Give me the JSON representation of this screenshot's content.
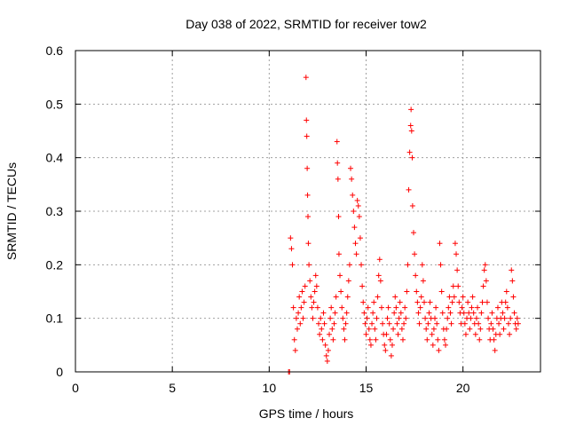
{
  "chart_data": {
    "type": "scatter",
    "title": "Day 038 of 2022, SRMTID for receiver tow2",
    "xlabel": "GPS time / hours",
    "ylabel": "SRMTID / TECUs",
    "xlim": [
      0,
      24
    ],
    "ylim": [
      0,
      0.6
    ],
    "xticks": [
      0,
      5,
      10,
      15,
      20
    ],
    "yticks": [
      0,
      0.1,
      0.2,
      0.3,
      0.4,
      0.5,
      0.6
    ],
    "xtick_labels": [
      "0",
      "5",
      "10",
      "15",
      "20"
    ],
    "ytick_labels": [
      "0",
      "0.1",
      "0.2",
      "0.3",
      "0.4",
      "0.5",
      "0.6"
    ],
    "grid": true,
    "marker": "+",
    "color": "#ff0000",
    "series": [
      {
        "name": "tow2",
        "points": [
          [
            11.0,
            0.0
          ],
          [
            11.05,
            0.0
          ],
          [
            11.1,
            0.25
          ],
          [
            11.15,
            0.23
          ],
          [
            11.2,
            0.2
          ],
          [
            11.25,
            0.12
          ],
          [
            11.3,
            0.06
          ],
          [
            11.35,
            0.04
          ],
          [
            11.4,
            0.1
          ],
          [
            11.45,
            0.08
          ],
          [
            11.5,
            0.11
          ],
          [
            11.55,
            0.14
          ],
          [
            11.6,
            0.09
          ],
          [
            11.65,
            0.12
          ],
          [
            11.7,
            0.15
          ],
          [
            11.75,
            0.1
          ],
          [
            11.8,
            0.13
          ],
          [
            11.85,
            0.16
          ],
          [
            11.9,
            0.55
          ],
          [
            11.92,
            0.47
          ],
          [
            11.94,
            0.44
          ],
          [
            11.96,
            0.38
          ],
          [
            11.98,
            0.33
          ],
          [
            12.0,
            0.29
          ],
          [
            12.02,
            0.24
          ],
          [
            12.05,
            0.2
          ],
          [
            12.1,
            0.17
          ],
          [
            12.15,
            0.14
          ],
          [
            12.2,
            0.12
          ],
          [
            12.25,
            0.1
          ],
          [
            12.3,
            0.13
          ],
          [
            12.35,
            0.15
          ],
          [
            12.4,
            0.18
          ],
          [
            12.45,
            0.16
          ],
          [
            12.5,
            0.12
          ],
          [
            12.55,
            0.09
          ],
          [
            12.6,
            0.07
          ],
          [
            12.65,
            0.1
          ],
          [
            12.7,
            0.08
          ],
          [
            12.75,
            0.06
          ],
          [
            12.8,
            0.11
          ],
          [
            12.85,
            0.09
          ],
          [
            12.9,
            0.05
          ],
          [
            12.95,
            0.03
          ],
          [
            13.0,
            0.02
          ],
          [
            13.05,
            0.04
          ],
          [
            13.1,
            0.07
          ],
          [
            13.15,
            0.1
          ],
          [
            13.2,
            0.12
          ],
          [
            13.25,
            0.08
          ],
          [
            13.3,
            0.06
          ],
          [
            13.35,
            0.09
          ],
          [
            13.4,
            0.11
          ],
          [
            13.45,
            0.14
          ],
          [
            13.5,
            0.43
          ],
          [
            13.52,
            0.39
          ],
          [
            13.55,
            0.36
          ],
          [
            13.58,
            0.29
          ],
          [
            13.6,
            0.22
          ],
          [
            13.65,
            0.18
          ],
          [
            13.7,
            0.15
          ],
          [
            13.75,
            0.12
          ],
          [
            13.8,
            0.1
          ],
          [
            13.85,
            0.08
          ],
          [
            13.9,
            0.06
          ],
          [
            13.95,
            0.09
          ],
          [
            14.0,
            0.11
          ],
          [
            14.05,
            0.14
          ],
          [
            14.1,
            0.17
          ],
          [
            14.15,
            0.2
          ],
          [
            14.2,
            0.38
          ],
          [
            14.25,
            0.36
          ],
          [
            14.3,
            0.33
          ],
          [
            14.35,
            0.3
          ],
          [
            14.4,
            0.27
          ],
          [
            14.45,
            0.24
          ],
          [
            14.5,
            0.22
          ],
          [
            14.55,
            0.32
          ],
          [
            14.6,
            0.31
          ],
          [
            14.65,
            0.29
          ],
          [
            14.7,
            0.25
          ],
          [
            14.75,
            0.2
          ],
          [
            14.8,
            0.16
          ],
          [
            14.85,
            0.13
          ],
          [
            14.9,
            0.11
          ],
          [
            14.95,
            0.09
          ],
          [
            15.0,
            0.07
          ],
          [
            15.05,
            0.1
          ],
          [
            15.1,
            0.12
          ],
          [
            15.15,
            0.08
          ],
          [
            15.2,
            0.06
          ],
          [
            15.25,
            0.05
          ],
          [
            15.3,
            0.09
          ],
          [
            15.35,
            0.11
          ],
          [
            15.4,
            0.13
          ],
          [
            15.45,
            0.08
          ],
          [
            15.5,
            0.06
          ],
          [
            15.55,
            0.1
          ],
          [
            15.6,
            0.14
          ],
          [
            15.65,
            0.18
          ],
          [
            15.7,
            0.21
          ],
          [
            15.75,
            0.17
          ],
          [
            15.8,
            0.12
          ],
          [
            15.85,
            0.09
          ],
          [
            15.9,
            0.07
          ],
          [
            15.95,
            0.05
          ],
          [
            16.0,
            0.04
          ],
          [
            16.05,
            0.07
          ],
          [
            16.1,
            0.1
          ],
          [
            16.15,
            0.12
          ],
          [
            16.2,
            0.09
          ],
          [
            16.25,
            0.06
          ],
          [
            16.3,
            0.03
          ],
          [
            16.35,
            0.05
          ],
          [
            16.4,
            0.08
          ],
          [
            16.45,
            0.11
          ],
          [
            16.5,
            0.14
          ],
          [
            16.55,
            0.12
          ],
          [
            16.6,
            0.09
          ],
          [
            16.65,
            0.07
          ],
          [
            16.7,
            0.1
          ],
          [
            16.75,
            0.13
          ],
          [
            16.8,
            0.11
          ],
          [
            16.85,
            0.08
          ],
          [
            16.9,
            0.06
          ],
          [
            16.95,
            0.09
          ],
          [
            17.0,
            0.12
          ],
          [
            17.05,
            0.1
          ],
          [
            17.1,
            0.15
          ],
          [
            17.15,
            0.2
          ],
          [
            17.2,
            0.34
          ],
          [
            17.25,
            0.41
          ],
          [
            17.3,
            0.46
          ],
          [
            17.32,
            0.49
          ],
          [
            17.35,
            0.45
          ],
          [
            17.38,
            0.4
          ],
          [
            17.4,
            0.31
          ],
          [
            17.45,
            0.26
          ],
          [
            17.5,
            0.22
          ],
          [
            17.55,
            0.18
          ],
          [
            17.6,
            0.15
          ],
          [
            17.65,
            0.13
          ],
          [
            17.7,
            0.11
          ],
          [
            17.75,
            0.09
          ],
          [
            17.8,
            0.12
          ],
          [
            17.85,
            0.14
          ],
          [
            17.9,
            0.2
          ],
          [
            17.95,
            0.17
          ],
          [
            18.0,
            0.13
          ],
          [
            18.05,
            0.1
          ],
          [
            18.1,
            0.08
          ],
          [
            18.15,
            0.06
          ],
          [
            18.2,
            0.09
          ],
          [
            18.25,
            0.11
          ],
          [
            18.3,
            0.13
          ],
          [
            18.35,
            0.1
          ],
          [
            18.4,
            0.07
          ],
          [
            18.45,
            0.05
          ],
          [
            18.5,
            0.08
          ],
          [
            18.55,
            0.1
          ],
          [
            18.6,
            0.12
          ],
          [
            18.65,
            0.09
          ],
          [
            18.7,
            0.06
          ],
          [
            18.75,
            0.04
          ],
          [
            18.8,
            0.24
          ],
          [
            18.85,
            0.2
          ],
          [
            18.9,
            0.15
          ],
          [
            18.95,
            0.11
          ],
          [
            19.0,
            0.08
          ],
          [
            19.05,
            0.06
          ],
          [
            19.1,
            0.05
          ],
          [
            19.15,
            0.08
          ],
          [
            19.2,
            0.1
          ],
          [
            19.25,
            0.12
          ],
          [
            19.3,
            0.14
          ],
          [
            19.35,
            0.11
          ],
          [
            19.4,
            0.09
          ],
          [
            19.45,
            0.13
          ],
          [
            19.5,
            0.16
          ],
          [
            19.55,
            0.14
          ],
          [
            19.6,
            0.24
          ],
          [
            19.65,
            0.22
          ],
          [
            19.7,
            0.19
          ],
          [
            19.75,
            0.16
          ],
          [
            19.8,
            0.13
          ],
          [
            19.85,
            0.11
          ],
          [
            19.9,
            0.09
          ],
          [
            19.95,
            0.12
          ],
          [
            20.0,
            0.14
          ],
          [
            20.05,
            0.11
          ],
          [
            20.1,
            0.09
          ],
          [
            20.15,
            0.07
          ],
          [
            20.2,
            0.1
          ],
          [
            20.25,
            0.13
          ],
          [
            20.3,
            0.11
          ],
          [
            20.35,
            0.08
          ],
          [
            20.4,
            0.1
          ],
          [
            20.45,
            0.12
          ],
          [
            20.5,
            0.14
          ],
          [
            20.55,
            0.11
          ],
          [
            20.6,
            0.09
          ],
          [
            20.65,
            0.07
          ],
          [
            20.7,
            0.1
          ],
          [
            20.75,
            0.12
          ],
          [
            20.8,
            0.09
          ],
          [
            20.85,
            0.06
          ],
          [
            20.9,
            0.08
          ],
          [
            20.95,
            0.11
          ],
          [
            21.0,
            0.13
          ],
          [
            21.05,
            0.16
          ],
          [
            21.1,
            0.19
          ],
          [
            21.15,
            0.2
          ],
          [
            21.2,
            0.17
          ],
          [
            21.25,
            0.13
          ],
          [
            21.3,
            0.1
          ],
          [
            21.35,
            0.08
          ],
          [
            21.4,
            0.06
          ],
          [
            21.45,
            0.09
          ],
          [
            21.5,
            0.11
          ],
          [
            21.55,
            0.08
          ],
          [
            21.6,
            0.06
          ],
          [
            21.65,
            0.04
          ],
          [
            21.7,
            0.07
          ],
          [
            21.75,
            0.1
          ],
          [
            21.8,
            0.12
          ],
          [
            21.85,
            0.09
          ],
          [
            21.9,
            0.07
          ],
          [
            21.95,
            0.1
          ],
          [
            22.0,
            0.13
          ],
          [
            22.05,
            0.11
          ],
          [
            22.1,
            0.08
          ],
          [
            22.15,
            0.1
          ],
          [
            22.2,
            0.13
          ],
          [
            22.25,
            0.15
          ],
          [
            22.3,
            0.12
          ],
          [
            22.35,
            0.09
          ],
          [
            22.4,
            0.07
          ],
          [
            22.45,
            0.1
          ],
          [
            22.5,
            0.19
          ],
          [
            22.55,
            0.17
          ],
          [
            22.6,
            0.14
          ],
          [
            22.65,
            0.11
          ],
          [
            22.7,
            0.09
          ],
          [
            22.75,
            0.08
          ],
          [
            22.8,
            0.1
          ],
          [
            22.85,
            0.09
          ]
        ]
      }
    ]
  }
}
